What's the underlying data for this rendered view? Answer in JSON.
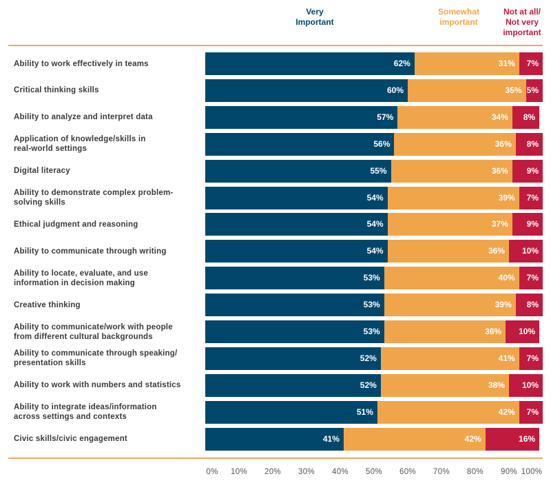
{
  "chart_data": {
    "type": "bar",
    "orientation": "horizontal",
    "stacked": true,
    "legend": [
      {
        "name": "Very\nImportant",
        "color": "#00476b"
      },
      {
        "name": "Somewhat\nimportant",
        "color": "#f0a54b"
      },
      {
        "name": "Not at all/\nNot very\nimportant",
        "color": "#c01a3f"
      }
    ],
    "categories": [
      "Ability to work effectively in teams",
      "Critical thinking skills",
      "Ability to analyze and interpret data",
      "Application of knowledge/skills in\nreal-world settings",
      "Digital literacy",
      "Ability to demonstrate complex problem-\nsolving skills",
      "Ethical judgment and reasoning",
      "Ability to communicate through writing",
      "Ability to locate, evaluate, and use\ninformation in decision making",
      "Creative thinking",
      "Ability to communicate/work with people\nfrom different cultural backgrounds",
      "Ability to communicate through speaking/\npresentation skills",
      "Ability to work with numbers and statistics",
      "Ability to integrate ideas/information\nacross settings and contexts",
      "Civic skills/civic engagement"
    ],
    "series": [
      {
        "name": "Very Important",
        "values": [
          62,
          60,
          57,
          56,
          55,
          54,
          54,
          54,
          53,
          53,
          53,
          52,
          52,
          51,
          41
        ]
      },
      {
        "name": "Somewhat important",
        "values": [
          31,
          35,
          34,
          36,
          36,
          39,
          37,
          36,
          40,
          39,
          36,
          41,
          38,
          42,
          42
        ]
      },
      {
        "name": "Not at all/Not very important",
        "values": [
          7,
          5,
          8,
          8,
          9,
          7,
          9,
          10,
          7,
          8,
          10,
          7,
          10,
          7,
          16
        ]
      }
    ],
    "xticks": [
      "0%",
      "10%",
      "20%",
      "30%",
      "40%",
      "50%",
      "60%",
      "70%",
      "80%",
      "90%",
      "100%"
    ],
    "xlim": [
      0,
      100
    ],
    "value_suffix": "%"
  }
}
